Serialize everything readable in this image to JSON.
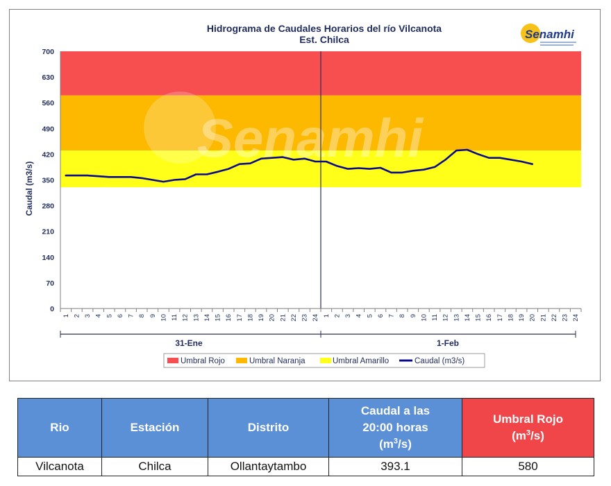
{
  "chart_data": {
    "type": "line",
    "title": "Hidrograma de Caudales Horarios del río Vilcanota",
    "subtitle": "Est. Chilca",
    "ylabel": "Caudal  (m3/s)",
    "ylim": [
      0,
      700
    ],
    "yticks": [
      0,
      70,
      140,
      210,
      280,
      350,
      420,
      490,
      560,
      630,
      700
    ],
    "xticks_day1": [
      "1",
      "2",
      "3",
      "4",
      "5",
      "6",
      "7",
      "8",
      "9",
      "10",
      "11",
      "12",
      "13",
      "14",
      "15",
      "16",
      "17",
      "18",
      "19",
      "20",
      "21",
      "22",
      "23",
      "24"
    ],
    "xticks_day2": [
      "1",
      "2",
      "3",
      "4",
      "5",
      "6",
      "7",
      "8",
      "9",
      "10",
      "11",
      "12",
      "13",
      "14",
      "15",
      "16",
      "17",
      "18",
      "19",
      "20",
      "21",
      "22",
      "23",
      "24"
    ],
    "day_labels": [
      "31-Ene",
      "1-Feb"
    ],
    "thresholds": {
      "amarillo": [
        330,
        430
      ],
      "naranja": [
        430,
        580
      ],
      "rojo": [
        580,
        700
      ]
    },
    "series": [
      {
        "name": "Caudal (m3/s)",
        "values": [
          362,
          362,
          362,
          360,
          358,
          358,
          358,
          355,
          350,
          345,
          350,
          352,
          365,
          365,
          372,
          380,
          393,
          395,
          408,
          410,
          412,
          405,
          408,
          400,
          400,
          388,
          380,
          382,
          380,
          383,
          370,
          370,
          375,
          378,
          385,
          405,
          430,
          432,
          420,
          410,
          410,
          405,
          400,
          393.1
        ]
      }
    ],
    "legend": [
      "Umbral Rojo",
      "Umbral Naranja",
      "Umbral Amarillo",
      "Caudal (m3/s)"
    ],
    "colors": {
      "rojo": "#f74f4f",
      "naranja": "#fcb900",
      "amarillo": "#ffff1a",
      "caudal": "#0a0a8c"
    },
    "logo": "Senamhi",
    "watermark": "Senamhi"
  },
  "table": {
    "headers": {
      "rio": "Rio",
      "estacion": "Estación",
      "distrito": "Distrito",
      "caudal_l1": "Caudal a las",
      "caudal_l2": "20:00 horas",
      "caudal_l3": "(m",
      "caudal_sup": "3",
      "caudal_l3b": "/s)",
      "umbral_l1": "Umbral Rojo",
      "umbral_l2": "(m",
      "umbral_sup": "3",
      "umbral_l2b": "/s)"
    },
    "row": {
      "rio": "Vilcanota",
      "estacion": "Chilca",
      "distrito": "Ollantaytambo",
      "caudal": "393.1",
      "umbral": "580"
    }
  }
}
